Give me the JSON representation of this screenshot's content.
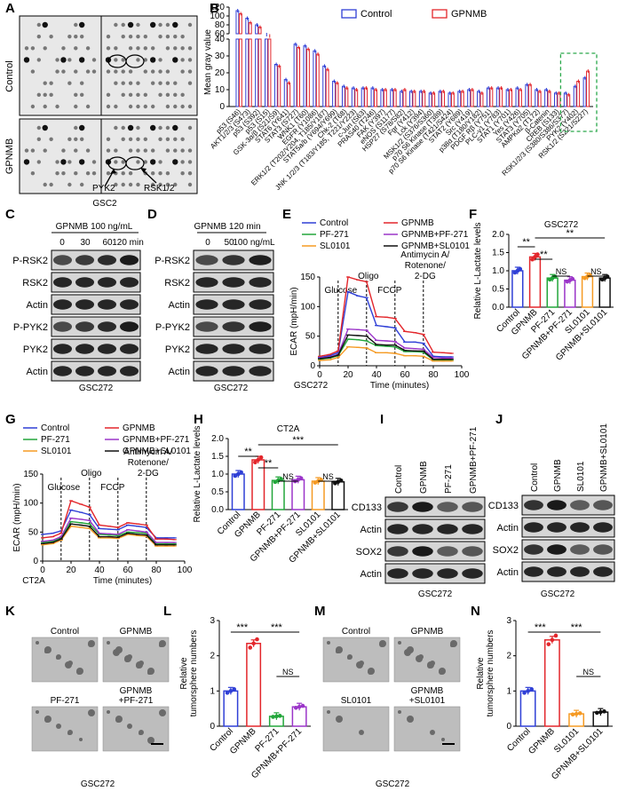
{
  "panel_letters": [
    "A",
    "B",
    "C",
    "D",
    "E",
    "F",
    "G",
    "H",
    "I",
    "J",
    "K",
    "L",
    "M",
    "N"
  ],
  "panel_a": {
    "row_labels": [
      "Control",
      "GPNMB"
    ],
    "arrow_labels": [
      "PYK2",
      "RSK1/2"
    ],
    "caption": "GSC2"
  },
  "panel_c": {
    "treatment": "GPNMB 100 ng/mL",
    "timepoints": [
      "0",
      "30",
      "60",
      "120 min"
    ],
    "blots": [
      "P-RSK2",
      "RSK2",
      "Actin",
      "P-PYK2",
      "PYK2",
      "Actin"
    ],
    "caption": "GSC272"
  },
  "panel_d": {
    "treatment": "GPNMB 120 min",
    "doses": [
      "0",
      "50",
      "100 ng/mL"
    ],
    "blots": [
      "P-RSK2",
      "RSK2",
      "Actin",
      "P-PYK2",
      "PYK2",
      "Actin"
    ],
    "caption": "GSC272"
  },
  "panel_i": {
    "lanes": [
      "Control",
      "GPNMB",
      "PF-271",
      "GPNMB+PF-271"
    ],
    "blots": [
      "CD133",
      "Actin",
      "SOX2",
      "Actin"
    ],
    "caption": "GSC272"
  },
  "panel_j": {
    "lanes": [
      "Control",
      "GPNMB",
      "SL0101",
      "GPNMB+SL0101"
    ],
    "blots": [
      "CD133",
      "Actin",
      "SOX2",
      "Actin"
    ],
    "caption": "GSC272"
  },
  "panel_k": {
    "labels": [
      "Control",
      "GPNMB",
      "PF-271",
      "GPNMB\n+PF-271"
    ],
    "caption": "GSC272"
  },
  "panel_m": {
    "labels": [
      "Control",
      "GPNMB",
      "SL0101",
      "GPNMB\n+SL0101"
    ],
    "caption": "GSC272"
  },
  "colors": {
    "control": "#2f3fd6",
    "gpnmb": "#e3262b",
    "pf271": "#22a63a",
    "sl0101": "#f59a23",
    "gpnmb_pf": "#9b35c9",
    "gpnmb_sl": "#111111",
    "highlight": "#2aa84a"
  },
  "chart_data": [
    {
      "panel": "B",
      "type": "bar",
      "ylabel": "Mean gray value",
      "yticks_top": [
        60,
        80,
        100,
        120
      ],
      "yticks_bottom": [
        0,
        10,
        20,
        30,
        40
      ],
      "legend": [
        "Control",
        "GPNMB"
      ],
      "categories": [
        "p53 (S46)",
        "AKT1/2/3 (S473)",
        "p53 (S392)",
        "p53 (S15)",
        "GSK-3α/β (S21/S9)",
        "STAT6 (Y641)",
        "STAT3 (S727)",
        "WNK1 (T60)",
        "EGFR (Y1086)",
        "ERK1/2 (T202/Y204, T185/Y187)",
        "STAT5a/b (Y694/Y699)",
        "Chk-2 (T68)",
        "JNK 1/2/3 (T183/Y185, T221/Y223)",
        "c-Jun (S63)",
        "PRAS40 (T246)",
        "FAK (Y397)",
        "eNOS (S1177)",
        "HSP27 (S78/S82)",
        "Fgr (Y412)",
        "Lck (Y394)",
        "MSK1/2 (S376/S360)",
        "p70 S6 Kinase (T389)",
        "p70 S6 Kinase (T421/S424)",
        "STAT2 (Y689)",
        "Src (Y419)",
        "p38α (T180/Y182)",
        "PDGF Rβ (Y751)",
        "PLC-γ1 (Y783)",
        "STAT1 (Y701)",
        "Yes (Y426)",
        "STAT3 (Y705)",
        "AMPKα2 (T172)",
        "β-Catenin",
        "CREB (S133)",
        "RSK1/2/3 (S380/S386/S377)",
        "PYK2 (Y402)",
        "RSK1/2 (S221/S227)"
      ],
      "series": [
        {
          "name": "Control",
          "values": [
            112,
            95,
            80,
            58,
            25,
            16,
            37,
            36,
            33,
            24,
            15,
            12,
            11,
            11,
            11,
            10,
            10,
            9,
            9,
            9,
            8,
            9,
            8,
            9,
            10,
            9,
            11,
            11,
            10,
            11,
            13,
            10,
            10,
            8,
            8,
            12,
            17
          ]
        },
        {
          "name": "GPNMB",
          "values": [
            105,
            85,
            75,
            55,
            24,
            14,
            35,
            34,
            31,
            22,
            14,
            11,
            10,
            11,
            10,
            10,
            10,
            10,
            9,
            9,
            8,
            9,
            8,
            9,
            10,
            8,
            11,
            11,
            10,
            10,
            13,
            9,
            9,
            8,
            7,
            15,
            21
          ]
        }
      ]
    },
    {
      "panel": "E",
      "type": "line",
      "xlabel": "Time (minutes)",
      "ylabel": "ECAR (mpH/min)",
      "caption": "GSC272",
      "x": [
        0,
        7,
        13,
        20,
        27,
        33,
        40,
        47,
        53,
        60,
        67,
        73,
        80,
        87,
        93
      ],
      "xlim": [
        0,
        100
      ],
      "ylim": [
        0,
        150
      ],
      "xticks": [
        0,
        20,
        40,
        60,
        80,
        100
      ],
      "yticks": [
        0,
        50,
        100,
        150
      ],
      "injections": [
        {
          "x": 13,
          "label": "Glucose"
        },
        {
          "x": 33,
          "label": "Oligo"
        },
        {
          "x": 53,
          "label": "FCCP"
        },
        {
          "x": 73,
          "label": "Antimycin A/\nRotenone/\n2-DG"
        }
      ],
      "series": [
        {
          "name": "Control",
          "values": [
            14,
            17,
            22,
            125,
            118,
            115,
            68,
            66,
            64,
            40,
            40,
            38,
            16,
            15,
            15
          ]
        },
        {
          "name": "GPNMB",
          "values": [
            16,
            19,
            25,
            150,
            145,
            142,
            83,
            82,
            80,
            58,
            56,
            53,
            23,
            22,
            21
          ]
        },
        {
          "name": "PF-271",
          "values": [
            11,
            13,
            17,
            45,
            44,
            42,
            34,
            33,
            32,
            24,
            24,
            23,
            10,
            10,
            10
          ]
        },
        {
          "name": "GPNMB+PF-271",
          "values": [
            13,
            15,
            19,
            62,
            61,
            60,
            43,
            42,
            41,
            30,
            29,
            28,
            14,
            13,
            13
          ]
        },
        {
          "name": "SL0101",
          "values": [
            9,
            10,
            14,
            32,
            31,
            30,
            22,
            22,
            21,
            17,
            17,
            16,
            8,
            8,
            8
          ]
        },
        {
          "name": "GPNMB+SL0101",
          "values": [
            12,
            14,
            18,
            52,
            51,
            50,
            36,
            35,
            35,
            26,
            25,
            25,
            11,
            11,
            11
          ]
        }
      ]
    },
    {
      "panel": "F",
      "type": "bar",
      "title": "GSC272",
      "ylabel": "Relative L-Lactate levels",
      "ylim": [
        0,
        2.0
      ],
      "yticks": [
        0.0,
        0.5,
        1.0,
        1.5,
        2.0
      ],
      "categories": [
        "Control",
        "GPNMB",
        "PF-271",
        "GPNMB+PF-271",
        "SL0101",
        "GPNMB+SL0101"
      ],
      "values": [
        1.0,
        1.38,
        0.8,
        0.74,
        0.84,
        0.8
      ],
      "significance": [
        "**",
        "**",
        "NS",
        "NS",
        "**"
      ]
    },
    {
      "panel": "G",
      "type": "line",
      "xlabel": "Time (minutes)",
      "ylabel": "ECAR (mpH/min)",
      "caption": "CT2A",
      "x": [
        0,
        7,
        13,
        20,
        27,
        33,
        40,
        47,
        53,
        60,
        67,
        73,
        80,
        87,
        93
      ],
      "xlim": [
        0,
        100
      ],
      "ylim": [
        0,
        150
      ],
      "xticks": [
        0,
        20,
        40,
        60,
        80,
        100
      ],
      "yticks": [
        0,
        50,
        100,
        150
      ],
      "injections": [
        {
          "x": 13,
          "label": "Glucose"
        },
        {
          "x": 33,
          "label": "Oligo"
        },
        {
          "x": 53,
          "label": "FCCP"
        },
        {
          "x": 73,
          "label": "Antimycin A/\nRotenone/\n2-DG"
        }
      ],
      "series": [
        {
          "name": "Control",
          "values": [
            46,
            48,
            52,
            88,
            84,
            80,
            56,
            55,
            54,
            62,
            60,
            58,
            40,
            40,
            40
          ]
        },
        {
          "name": "GPNMB",
          "values": [
            40,
            42,
            48,
            104,
            98,
            93,
            62,
            60,
            58,
            66,
            64,
            62,
            38,
            38,
            37
          ]
        },
        {
          "name": "PF-271",
          "values": [
            32,
            34,
            40,
            68,
            66,
            64,
            46,
            45,
            44,
            50,
            49,
            48,
            30,
            30,
            30
          ]
        },
        {
          "name": "GPNMB+PF-271",
          "values": [
            34,
            36,
            42,
            74,
            72,
            70,
            48,
            47,
            46,
            54,
            52,
            50,
            32,
            32,
            32
          ]
        },
        {
          "name": "SL0101",
          "values": [
            28,
            30,
            36,
            60,
            58,
            56,
            40,
            40,
            39,
            46,
            44,
            43,
            26,
            26,
            26
          ]
        },
        {
          "name": "GPNMB+SL0101",
          "values": [
            30,
            32,
            38,
            64,
            62,
            60,
            42,
            42,
            41,
            48,
            46,
            45,
            28,
            28,
            28
          ]
        }
      ]
    },
    {
      "panel": "H",
      "type": "bar",
      "title": "CT2A",
      "ylabel": "Relative L-Lactate levels",
      "ylim": [
        0,
        2.0
      ],
      "yticks": [
        0.0,
        0.5,
        1.0,
        1.5,
        2.0
      ],
      "categories": [
        "Control",
        "GPNMB",
        "PF-271",
        "GPNMB+PF-271",
        "SL0101",
        "GPNMB+SL0101"
      ],
      "values": [
        1.0,
        1.4,
        0.82,
        0.84,
        0.8,
        0.78
      ],
      "significance": [
        "**",
        "**",
        "NS",
        "NS",
        "***"
      ]
    },
    {
      "panel": "L",
      "type": "bar",
      "ylabel": "Relative tumorsphere numbers",
      "ylim": [
        0,
        3
      ],
      "yticks": [
        0,
        1,
        2,
        3
      ],
      "categories": [
        "Control",
        "GPNMB",
        "PF-271",
        "GPNMB+PF-271"
      ],
      "values": [
        1.0,
        2.35,
        0.28,
        0.55
      ],
      "significance": [
        "***",
        "***",
        "NS"
      ]
    },
    {
      "panel": "N",
      "type": "bar",
      "ylabel": "Relative tumorsphere numbers",
      "ylim": [
        0,
        3
      ],
      "yticks": [
        0,
        1,
        2,
        3
      ],
      "categories": [
        "Control",
        "GPNMB",
        "SL0101",
        "GPNMB+SL0101"
      ],
      "values": [
        1.0,
        2.45,
        0.35,
        0.4
      ],
      "significance": [
        "***",
        "***",
        "NS"
      ]
    }
  ]
}
